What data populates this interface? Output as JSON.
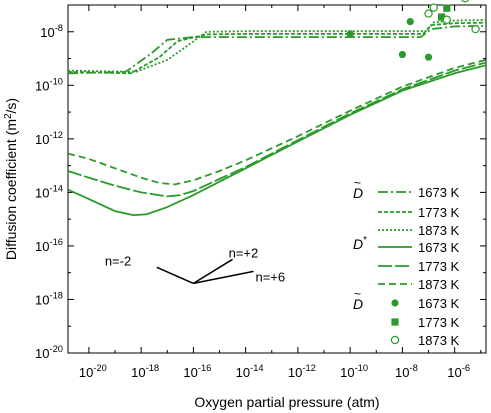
{
  "chart_data": {
    "type": "line",
    "xlabel": "Oxygen partial pressure (atm)",
    "ylabel_main": "Diffusion coefficient (m",
    "ylabel_sup": "2",
    "ylabel_tail": "/s)",
    "x_log": true,
    "y_log": true,
    "xlim_exp": [
      -20.8,
      -4.8
    ],
    "ylim_exp": [
      -20,
      -7
    ],
    "x_ticks": [
      {
        "exp": -20,
        "label": "10",
        "sup": "-20"
      },
      {
        "exp": -18,
        "label": "10",
        "sup": "-18"
      },
      {
        "exp": -16,
        "label": "10",
        "sup": "-16"
      },
      {
        "exp": -14,
        "label": "10",
        "sup": "-14"
      },
      {
        "exp": -12,
        "label": "10",
        "sup": "-12"
      },
      {
        "exp": -10,
        "label": "10",
        "sup": "-10"
      },
      {
        "exp": -8,
        "label": "10",
        "sup": "-8"
      },
      {
        "exp": -6,
        "label": "10",
        "sup": "-6"
      }
    ],
    "y_ticks": [
      {
        "exp": -8,
        "label": "10",
        "sup": "-8"
      },
      {
        "exp": -10,
        "label": "10",
        "sup": "-10"
      },
      {
        "exp": -12,
        "label": "10",
        "sup": "-12"
      },
      {
        "exp": -14,
        "label": "10",
        "sup": "-14"
      },
      {
        "exp": -16,
        "label": "10",
        "sup": "-16"
      },
      {
        "exp": -18,
        "label": "10",
        "sup": "-18"
      },
      {
        "exp": -20,
        "label": "10",
        "sup": "-20"
      }
    ],
    "color": "#2a9a2a",
    "series": [
      {
        "group": "chem",
        "temp": "1673 K",
        "dash": "10,3,2,3",
        "points": [
          [
            -20.8,
            -9.55
          ],
          [
            -18.6,
            -9.5
          ],
          [
            -17.6,
            -8.8
          ],
          [
            -17.0,
            -8.3
          ],
          [
            -16.0,
            -8.2
          ],
          [
            -14,
            -8.2
          ],
          [
            -10,
            -8.2
          ],
          [
            -8,
            -8.2
          ],
          [
            -7.3,
            -8.2
          ],
          [
            -6.9,
            -7.9
          ],
          [
            -6,
            -7.8
          ],
          [
            -4.8,
            -7.78
          ]
        ]
      },
      {
        "group": "chem",
        "temp": "1773 K",
        "dash": "4,2",
        "points": [
          [
            -20.8,
            -9.5
          ],
          [
            -18.4,
            -9.55
          ],
          [
            -17.3,
            -8.95
          ],
          [
            -16.6,
            -8.35
          ],
          [
            -15.5,
            -8.1
          ],
          [
            -14,
            -8.08
          ],
          [
            -10,
            -8.08
          ],
          [
            -7.2,
            -8.08
          ],
          [
            -6.9,
            -7.75
          ],
          [
            -6,
            -7.68
          ],
          [
            -4.8,
            -7.66
          ]
        ]
      },
      {
        "group": "chem",
        "temp": "1873 K",
        "dash": "2,2",
        "points": [
          [
            -20.8,
            -9.45
          ],
          [
            -18.2,
            -9.5
          ],
          [
            -17.0,
            -9.05
          ],
          [
            -16.2,
            -8.5
          ],
          [
            -15.5,
            -8.0
          ],
          [
            -14,
            -7.98
          ],
          [
            -10,
            -7.98
          ],
          [
            -7.1,
            -7.98
          ],
          [
            -6.8,
            -7.65
          ],
          [
            -6,
            -7.58
          ],
          [
            -4.8,
            -7.56
          ]
        ]
      },
      {
        "group": "tracer",
        "temp": "1673 K",
        "dash": "",
        "points": [
          [
            -20.8,
            -13.9
          ],
          [
            -20,
            -14.25
          ],
          [
            -19,
            -14.7
          ],
          [
            -18.3,
            -14.85
          ],
          [
            -17.8,
            -14.82
          ],
          [
            -17,
            -14.55
          ],
          [
            -16,
            -14.1
          ],
          [
            -15,
            -13.6
          ],
          [
            -14,
            -13.1
          ],
          [
            -12,
            -12.1
          ],
          [
            -10,
            -11.1
          ],
          [
            -8,
            -10.2
          ],
          [
            -6,
            -9.55
          ],
          [
            -4.8,
            -9.25
          ]
        ]
      },
      {
        "group": "tracer",
        "temp": "1773 K",
        "dash": "14,3",
        "points": [
          [
            -20.8,
            -13.2
          ],
          [
            -20,
            -13.45
          ],
          [
            -19,
            -13.75
          ],
          [
            -18,
            -14.0
          ],
          [
            -17,
            -14.15
          ],
          [
            -16.5,
            -14.1
          ],
          [
            -16,
            -13.95
          ],
          [
            -15,
            -13.5
          ],
          [
            -14,
            -13.05
          ],
          [
            -12,
            -12.05
          ],
          [
            -10,
            -11.05
          ],
          [
            -8,
            -10.15
          ],
          [
            -6,
            -9.45
          ],
          [
            -4.8,
            -9.15
          ]
        ]
      },
      {
        "group": "tracer",
        "temp": "1873 K",
        "dash": "7,4",
        "points": [
          [
            -20.8,
            -12.55
          ],
          [
            -20,
            -12.75
          ],
          [
            -19,
            -13.1
          ],
          [
            -18,
            -13.45
          ],
          [
            -17.3,
            -13.65
          ],
          [
            -16.7,
            -13.7
          ],
          [
            -16,
            -13.55
          ],
          [
            -15,
            -13.2
          ],
          [
            -14,
            -12.8
          ],
          [
            -12,
            -11.9
          ],
          [
            -10,
            -10.95
          ],
          [
            -8,
            -10.05
          ],
          [
            -6,
            -9.35
          ],
          [
            -4.8,
            -9.05
          ]
        ]
      }
    ],
    "scatter": [
      {
        "temp": "1673 K",
        "marker": "circle-filled",
        "points": [
          [
            -10,
            -8.08
          ],
          [
            -8,
            -8.85
          ],
          [
            -7.7,
            -7.62
          ],
          [
            -7,
            -8.95
          ]
        ]
      },
      {
        "temp": "1773 K",
        "marker": "square-filled",
        "points": [
          [
            -6.5,
            -7.45
          ],
          [
            -6.3,
            -7.12
          ]
        ]
      },
      {
        "temp": "1873 K",
        "marker": "circle-open",
        "points": [
          [
            -7.0,
            -7.32
          ],
          [
            -6.8,
            -7.1
          ],
          [
            -6.3,
            -7.55
          ],
          [
            -5.6,
            -6.75
          ],
          [
            -5.2,
            -7.9
          ]
        ]
      }
    ],
    "slope_annotation": {
      "vertex": [
        -16,
        -17.4
      ],
      "lines": [
        {
          "label": "n=-2",
          "end": [
            -17.4,
            -16.8
          ]
        },
        {
          "label": "n=+2",
          "end": [
            -14.5,
            -16.5
          ]
        },
        {
          "label": "n=+6",
          "end": [
            -13.7,
            -16.95
          ]
        }
      ]
    },
    "legend": {
      "position": "right",
      "groups": [
        {
          "symbol": "D",
          "accent": "~",
          "sup": "",
          "entries": [
            "1673 K",
            "1773 K",
            "1873 K"
          ]
        },
        {
          "symbol": "D",
          "accent": "",
          "sup": "*",
          "entries": [
            "1673 K",
            "1773 K",
            "1873 K"
          ]
        },
        {
          "symbol": "D",
          "accent": "~",
          "sup": "",
          "entries": [
            "1673 K",
            "1773 K",
            "1873 K"
          ]
        }
      ]
    }
  }
}
